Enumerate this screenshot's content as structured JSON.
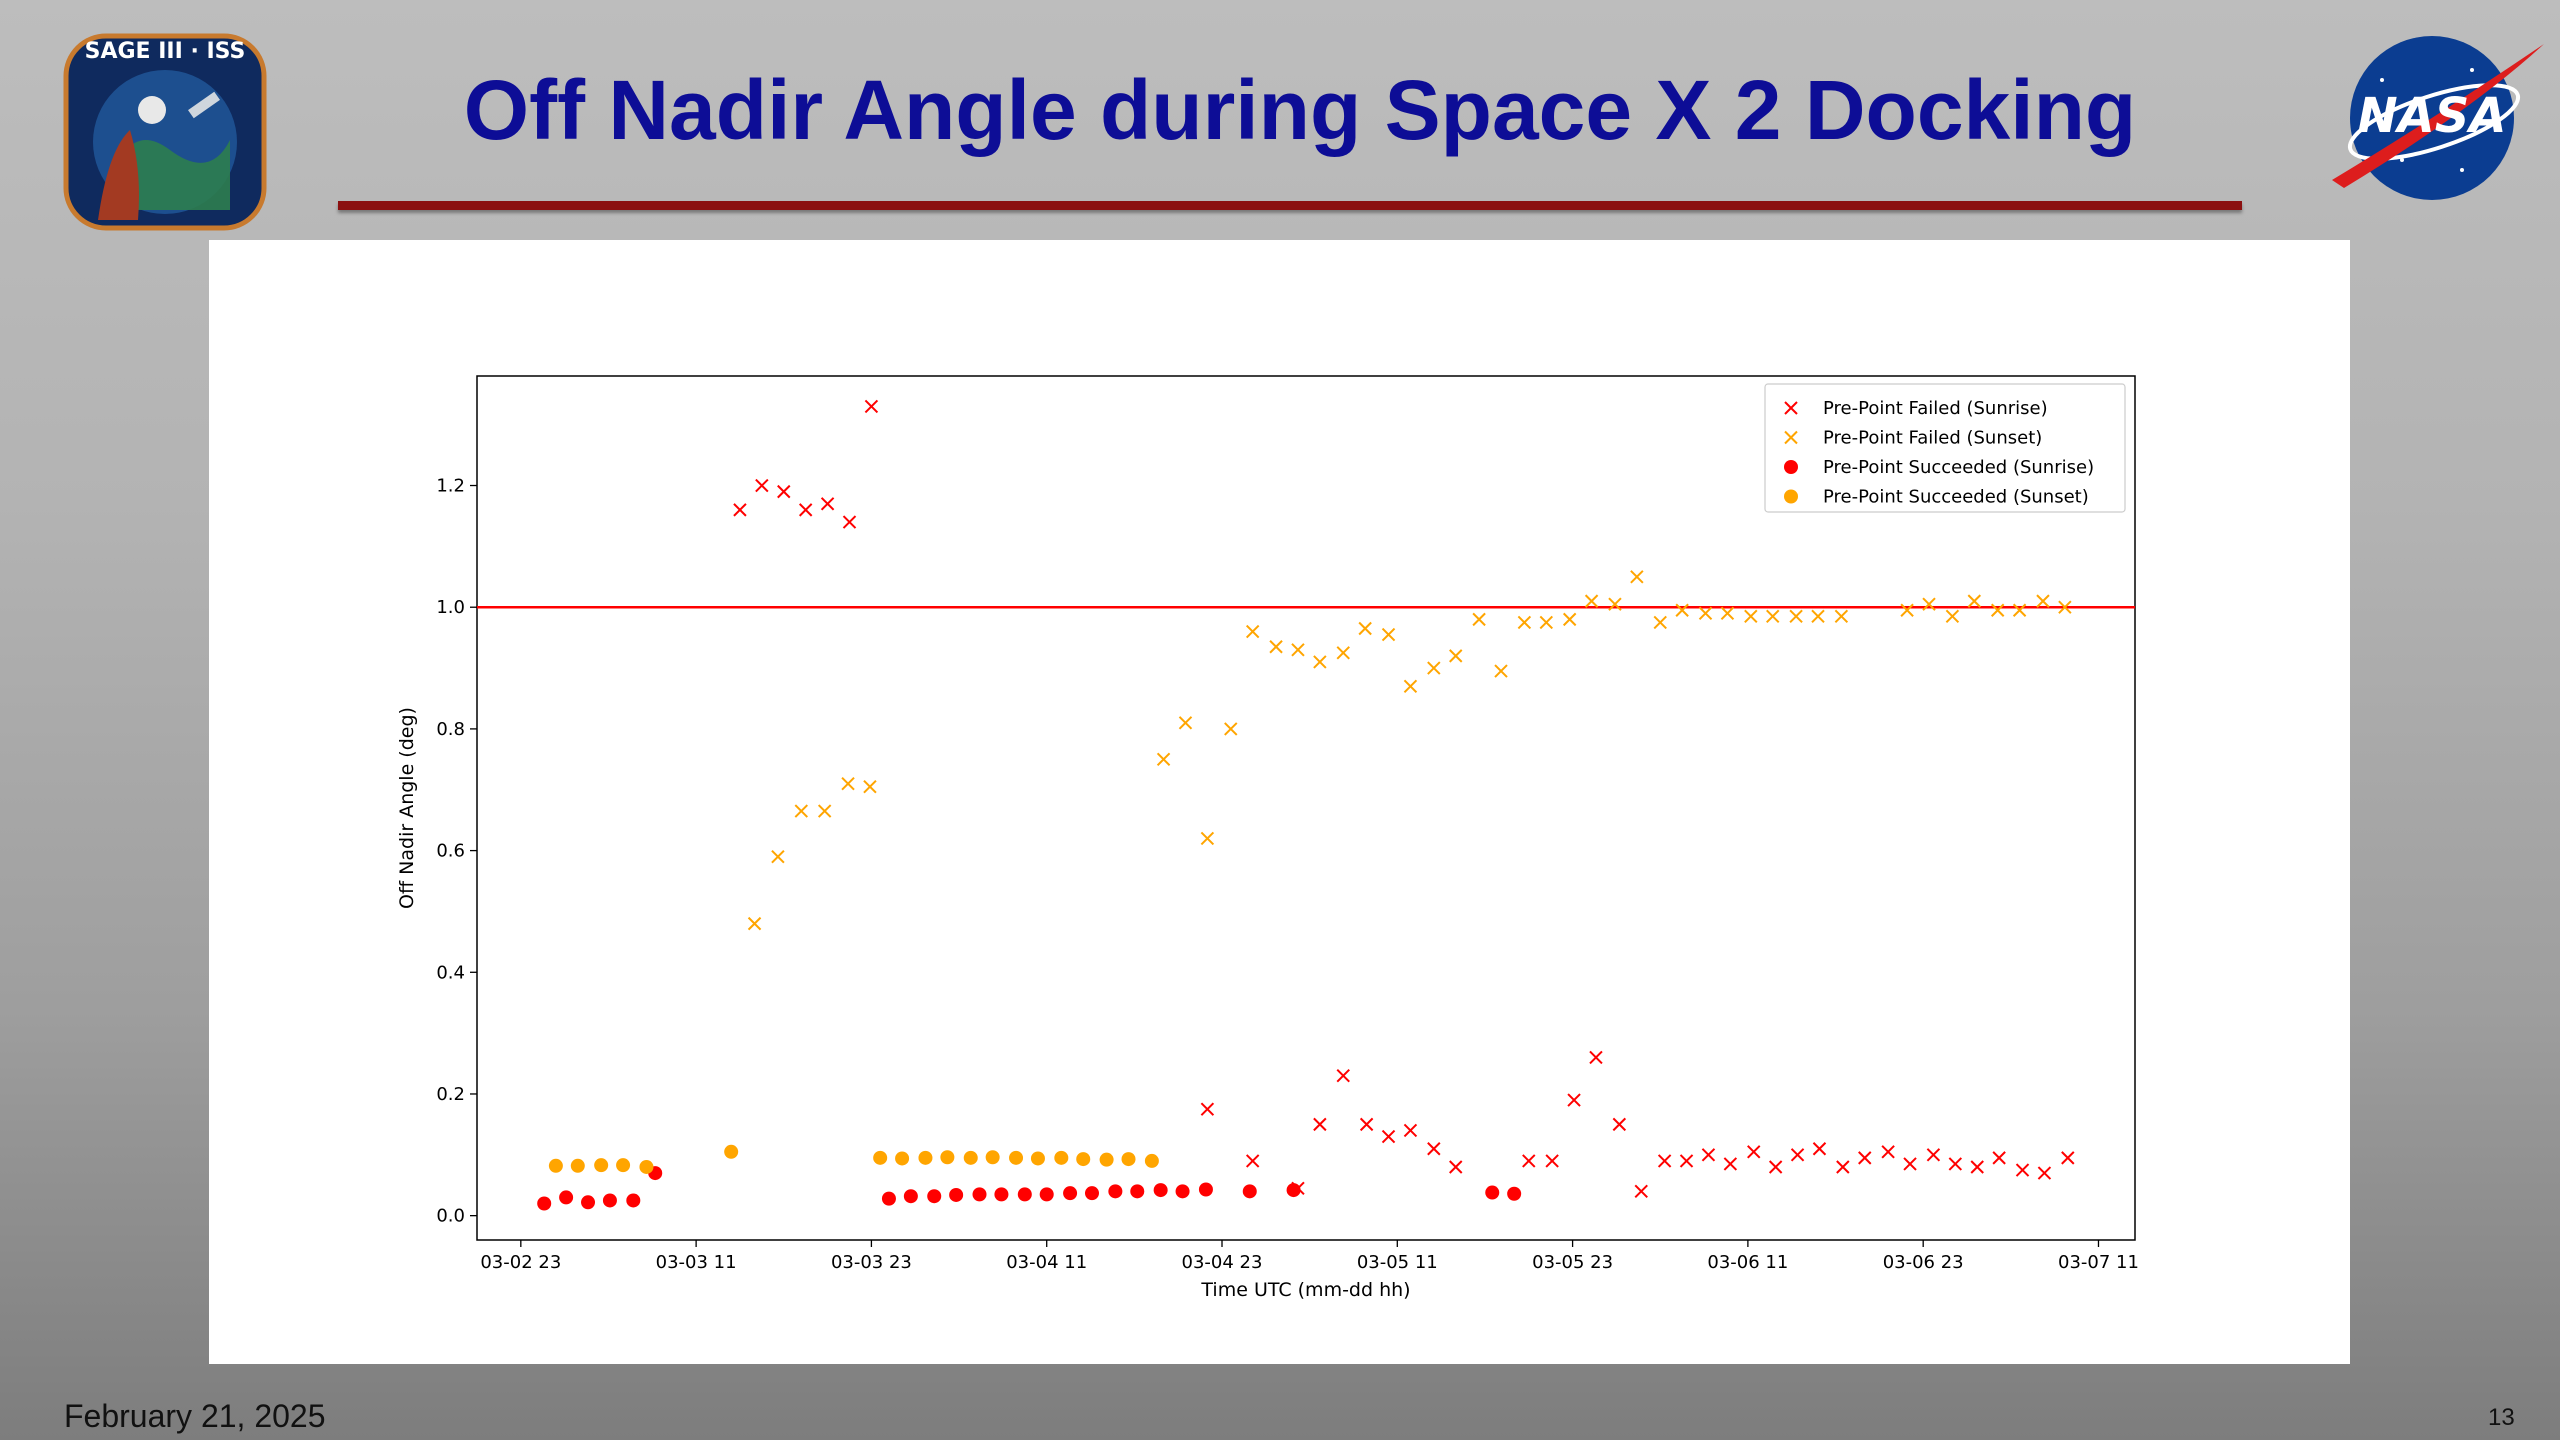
{
  "slide": {
    "title": "Off Nadir Angle during Space X 2 Docking",
    "date": "February 21, 2025",
    "page_number": "13",
    "left_logo_text": "SAGE III · ISS",
    "right_logo_text": "NASA"
  },
  "colors": {
    "title": "#0d0d96",
    "rule": "#8b1010",
    "sunrise": "#ff0000",
    "sunset": "#ffa500",
    "threshold": "#ff0000"
  },
  "chart_data": {
    "type": "scatter",
    "xlabel": "Time UTC (mm-dd hh)",
    "ylabel": "Off Nadir Angle (deg)",
    "x_units": "hours after 03-02 23:00 UTC",
    "xlim": [
      -3,
      110.5
    ],
    "ylim": [
      -0.04,
      1.38
    ],
    "x_ticks": [
      {
        "value": 0,
        "label": "03-02 23"
      },
      {
        "value": 12,
        "label": "03-03 11"
      },
      {
        "value": 24,
        "label": "03-03 23"
      },
      {
        "value": 36,
        "label": "03-04 11"
      },
      {
        "value": 48,
        "label": "03-04 23"
      },
      {
        "value": 60,
        "label": "03-05 11"
      },
      {
        "value": 72,
        "label": "03-05 23"
      },
      {
        "value": 84,
        "label": "03-06 11"
      },
      {
        "value": 96,
        "label": "03-06 23"
      },
      {
        "value": 108,
        "label": "03-07 11"
      }
    ],
    "y_ticks": [
      {
        "value": 0.0,
        "label": "0.0"
      },
      {
        "value": 0.2,
        "label": "0.2"
      },
      {
        "value": 0.4,
        "label": "0.4"
      },
      {
        "value": 0.6,
        "label": "0.6"
      },
      {
        "value": 0.8,
        "label": "0.8"
      },
      {
        "value": 1.0,
        "label": "1.0"
      },
      {
        "value": 1.2,
        "label": "1.2"
      }
    ],
    "threshold_line": {
      "y": 1.0,
      "color": "#ff0000"
    },
    "legend_position": "top-right",
    "grid": false,
    "series": [
      {
        "name": "Pre-Point Failed (Sunrise)",
        "marker": "x",
        "color": "#ff0000",
        "points": [
          [
            15.0,
            1.16
          ],
          [
            16.5,
            1.2
          ],
          [
            18.0,
            1.19
          ],
          [
            19.5,
            1.16
          ],
          [
            21.0,
            1.17
          ],
          [
            22.5,
            1.14
          ],
          [
            24.0,
            1.33
          ],
          [
            47.0,
            0.175
          ],
          [
            50.1,
            0.09
          ],
          [
            53.2,
            0.045
          ],
          [
            54.7,
            0.15
          ],
          [
            56.3,
            0.23
          ],
          [
            57.9,
            0.15
          ],
          [
            59.4,
            0.13
          ],
          [
            60.9,
            0.14
          ],
          [
            62.5,
            0.11
          ],
          [
            64.0,
            0.08
          ],
          [
            69.0,
            0.09
          ],
          [
            70.6,
            0.09
          ],
          [
            72.1,
            0.19
          ],
          [
            73.6,
            0.26
          ],
          [
            75.2,
            0.15
          ],
          [
            76.7,
            0.04
          ],
          [
            78.3,
            0.09
          ],
          [
            79.8,
            0.09
          ],
          [
            81.3,
            0.1
          ],
          [
            82.8,
            0.085
          ],
          [
            84.4,
            0.105
          ],
          [
            85.9,
            0.08
          ],
          [
            87.4,
            0.1
          ],
          [
            88.9,
            0.11
          ],
          [
            90.5,
            0.08
          ],
          [
            92.0,
            0.095
          ],
          [
            93.6,
            0.105
          ],
          [
            95.1,
            0.085
          ],
          [
            96.7,
            0.1
          ],
          [
            98.2,
            0.085
          ],
          [
            99.7,
            0.08
          ],
          [
            101.2,
            0.095
          ],
          [
            102.8,
            0.075
          ],
          [
            104.3,
            0.07
          ],
          [
            105.9,
            0.095
          ]
        ]
      },
      {
        "name": "Pre-Point Failed (Sunset)",
        "marker": "x",
        "color": "#ffa500",
        "points": [
          [
            16.0,
            0.48
          ],
          [
            17.6,
            0.59
          ],
          [
            19.2,
            0.665
          ],
          [
            20.8,
            0.665
          ],
          [
            22.4,
            0.71
          ],
          [
            23.9,
            0.705
          ],
          [
            44.0,
            0.75
          ],
          [
            45.5,
            0.81
          ],
          [
            47.0,
            0.62
          ],
          [
            48.6,
            0.8
          ],
          [
            50.1,
            0.96
          ],
          [
            51.7,
            0.935
          ],
          [
            53.2,
            0.93
          ],
          [
            54.7,
            0.91
          ],
          [
            56.3,
            0.925
          ],
          [
            57.8,
            0.965
          ],
          [
            59.4,
            0.955
          ],
          [
            60.9,
            0.87
          ],
          [
            62.5,
            0.9
          ],
          [
            64.0,
            0.92
          ],
          [
            65.6,
            0.98
          ],
          [
            67.1,
            0.895
          ],
          [
            68.7,
            0.975
          ],
          [
            70.2,
            0.975
          ],
          [
            71.8,
            0.98
          ],
          [
            73.3,
            1.01
          ],
          [
            74.9,
            1.005
          ],
          [
            76.4,
            1.05
          ],
          [
            78.0,
            0.975
          ],
          [
            79.5,
            0.995
          ],
          [
            81.1,
            0.99
          ],
          [
            82.6,
            0.99
          ],
          [
            84.2,
            0.985
          ],
          [
            85.7,
            0.985
          ],
          [
            87.3,
            0.985
          ],
          [
            88.8,
            0.985
          ],
          [
            90.4,
            0.985
          ],
          [
            94.9,
            0.995
          ],
          [
            96.4,
            1.005
          ],
          [
            98.0,
            0.985
          ],
          [
            99.5,
            1.01
          ],
          [
            101.1,
            0.995
          ],
          [
            102.6,
            0.995
          ],
          [
            104.2,
            1.01
          ],
          [
            105.7,
            1.0
          ]
        ]
      },
      {
        "name": "Pre-Point Succeeded (Sunrise)",
        "marker": "o",
        "color": "#ff0000",
        "points": [
          [
            1.6,
            0.02
          ],
          [
            3.1,
            0.03
          ],
          [
            4.6,
            0.022
          ],
          [
            6.1,
            0.025
          ],
          [
            7.7,
            0.025
          ],
          [
            9.2,
            0.07
          ],
          [
            25.2,
            0.028
          ],
          [
            26.7,
            0.032
          ],
          [
            28.3,
            0.032
          ],
          [
            29.8,
            0.034
          ],
          [
            31.4,
            0.035
          ],
          [
            32.9,
            0.035
          ],
          [
            34.5,
            0.035
          ],
          [
            36.0,
            0.035
          ],
          [
            37.6,
            0.037
          ],
          [
            39.1,
            0.037
          ],
          [
            40.7,
            0.04
          ],
          [
            42.2,
            0.04
          ],
          [
            43.8,
            0.042
          ],
          [
            45.3,
            0.04
          ],
          [
            46.9,
            0.043
          ],
          [
            49.9,
            0.04
          ],
          [
            52.9,
            0.042
          ],
          [
            66.5,
            0.038
          ],
          [
            68.0,
            0.036
          ]
        ]
      },
      {
        "name": "Pre-Point Succeeded (Sunset)",
        "marker": "o",
        "color": "#ffa500",
        "points": [
          [
            2.4,
            0.082
          ],
          [
            3.9,
            0.082
          ],
          [
            5.5,
            0.083
          ],
          [
            7.0,
            0.083
          ],
          [
            8.6,
            0.08
          ],
          [
            14.4,
            0.105
          ],
          [
            24.6,
            0.095
          ],
          [
            26.1,
            0.094
          ],
          [
            27.7,
            0.095
          ],
          [
            29.2,
            0.096
          ],
          [
            30.8,
            0.095
          ],
          [
            32.3,
            0.096
          ],
          [
            33.9,
            0.095
          ],
          [
            35.4,
            0.094
          ],
          [
            37.0,
            0.095
          ],
          [
            38.5,
            0.093
          ],
          [
            40.1,
            0.092
          ],
          [
            41.6,
            0.093
          ],
          [
            43.2,
            0.09
          ]
        ]
      }
    ]
  }
}
